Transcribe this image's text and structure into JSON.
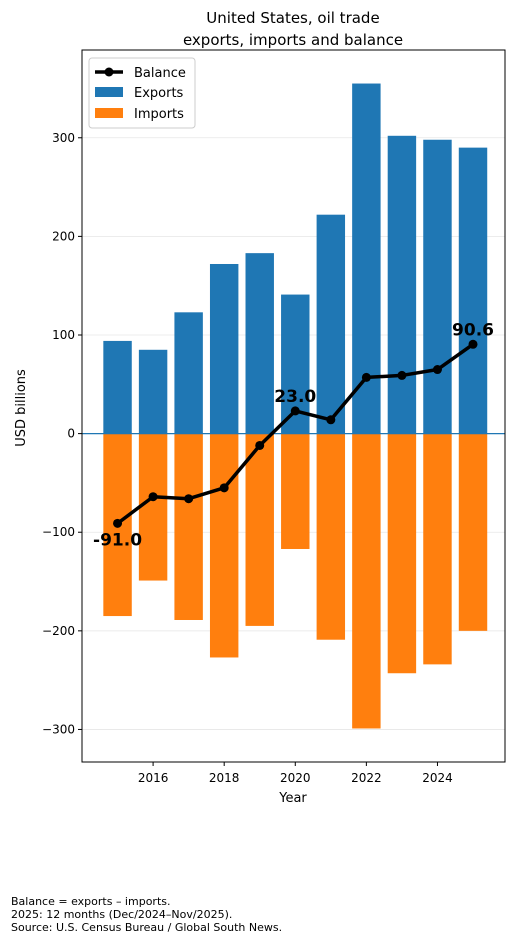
{
  "chart_data": {
    "type": "bar",
    "title": "United States, oil trade",
    "subtitle": "exports, imports and balance",
    "xlabel": "Year",
    "ylabel": "USD billions",
    "x": [
      2015,
      2016,
      2017,
      2018,
      2019,
      2020,
      2021,
      2022,
      2023,
      2024,
      2025
    ],
    "series": [
      {
        "name": "Exports",
        "kind": "bar",
        "color": "#1f77b4",
        "values": [
          94,
          85,
          123,
          172,
          183,
          141,
          222,
          355,
          302,
          298,
          290
        ]
      },
      {
        "name": "Imports",
        "kind": "bar",
        "color": "#ff7f0e",
        "values": [
          -185,
          -149,
          -189,
          -227,
          -195,
          -117,
          -209,
          -299,
          -243,
          -234,
          -200
        ]
      },
      {
        "name": "Balance",
        "kind": "line",
        "color": "#000000",
        "values": [
          -91.0,
          -64,
          -66,
          -55,
          -12,
          23.0,
          14,
          57,
          59,
          65,
          90.6
        ]
      }
    ],
    "annotations": [
      {
        "x": 2015,
        "y": -91.0,
        "text": "-91.0"
      },
      {
        "x": 2020,
        "y": 23.0,
        "text": "23.0"
      },
      {
        "x": 2025,
        "y": 90.6,
        "text": "90.6"
      }
    ],
    "xticks": [
      2016,
      2018,
      2020,
      2022,
      2024
    ],
    "yticks": [
      -300,
      -200,
      -100,
      0,
      100,
      200,
      300
    ],
    "xlim": [
      2014.0,
      2025.9
    ],
    "ylim": [
      -333,
      389
    ],
    "grid": "horizontal",
    "legend": "top-left",
    "legend_entries": [
      "Balance",
      "Exports",
      "Imports"
    ],
    "zero_line_color": "#1f77b4"
  },
  "footnote": {
    "line1": "Balance = exports – imports.",
    "line2": "2025: 12 months (Dec/2024–Nov/2025).",
    "line3": "Source: U.S. Census Bureau / Global South News."
  }
}
